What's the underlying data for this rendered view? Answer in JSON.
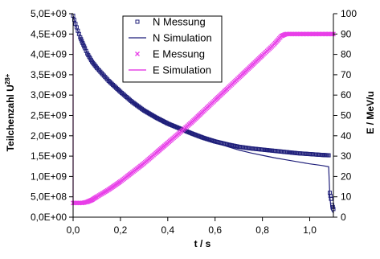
{
  "chart_data": {
    "type": "line",
    "xlabel": "t / s",
    "ylabel_left_base": "Teilchenzahl U",
    "ylabel_left_sup": "28+",
    "ylabel_right": "E / MeV/u",
    "xlim": [
      0,
      1.1
    ],
    "ylim_left": [
      0,
      5000000000.0
    ],
    "ylim_right": [
      0,
      100
    ],
    "grid": false,
    "legend_placement": "top-center",
    "x_ticks": [
      0.0,
      0.2,
      0.4,
      0.6,
      0.8,
      1.0
    ],
    "x_tick_labels": [
      "0,0",
      "0,2",
      "0,4",
      "0,6",
      "0,8",
      "1,0"
    ],
    "y_left_ticks": [
      0,
      500000000.0,
      1000000000.0,
      1500000000.0,
      2000000000.0,
      2500000000.0,
      3000000000.0,
      3500000000.0,
      4000000000.0,
      4500000000.0,
      5000000000.0
    ],
    "y_left_tick_labels": [
      "0,0E+00",
      "5,0E+08",
      "1,0E+09",
      "1,5E+09",
      "2,0E+09",
      "2,5E+09",
      "3,0E+09",
      "3,5E+09",
      "4,0E+09",
      "4,5E+09",
      "5,0E+09"
    ],
    "y_right_ticks": [
      0,
      10,
      20,
      30,
      40,
      50,
      60,
      70,
      80,
      90,
      100
    ],
    "y_right_tick_labels": [
      "0",
      "10",
      "20",
      "30",
      "40",
      "50",
      "60",
      "70",
      "80",
      "90",
      "100"
    ],
    "series": [
      {
        "name": "N Messung",
        "axis": "left",
        "kind": "markers",
        "marker": "square",
        "color": "#1f1f7a",
        "x": [
          0.0,
          0.005,
          0.01,
          0.02,
          0.03,
          0.04,
          0.05,
          0.06,
          0.08,
          0.1,
          0.15,
          0.2,
          0.25,
          0.3,
          0.35,
          0.4,
          0.45,
          0.5,
          0.55,
          0.6,
          0.65,
          0.7,
          0.75,
          0.8,
          0.85,
          0.9,
          0.95,
          1.0,
          1.05,
          1.08,
          1.085,
          1.09,
          1.095,
          1.1
        ],
        "y": [
          4950000000.0,
          4850000000.0,
          4750000000.0,
          4580000000.0,
          4420000000.0,
          4280000000.0,
          4150000000.0,
          4020000000.0,
          3820000000.0,
          3670000000.0,
          3350000000.0,
          3080000000.0,
          2830000000.0,
          2620000000.0,
          2450000000.0,
          2300000000.0,
          2180000000.0,
          2060000000.0,
          1950000000.0,
          1860000000.0,
          1790000000.0,
          1730000000.0,
          1690000000.0,
          1660000000.0,
          1630000000.0,
          1600000000.0,
          1570000000.0,
          1550000000.0,
          1530000000.0,
          1520000000.0,
          600000000.0,
          450000000.0,
          300000000.0,
          200000000.0
        ]
      },
      {
        "name": "N Simulation",
        "axis": "left",
        "kind": "line",
        "color": "#1f1f7a",
        "x": [
          0.0,
          0.005,
          0.01,
          0.02,
          0.03,
          0.04,
          0.05,
          0.06,
          0.08,
          0.1,
          0.15,
          0.2,
          0.25,
          0.3,
          0.35,
          0.4,
          0.45,
          0.5,
          0.55,
          0.6,
          0.65,
          0.7,
          0.75,
          0.8,
          0.85,
          0.9,
          0.95,
          1.0,
          1.05,
          1.08,
          1.085,
          1.09,
          1.1
        ],
        "y": [
          4950000000.0,
          4850000000.0,
          4750000000.0,
          4580000000.0,
          4420000000.0,
          4280000000.0,
          4150000000.0,
          4020000000.0,
          3820000000.0,
          3670000000.0,
          3350000000.0,
          3080000000.0,
          2830000000.0,
          2620000000.0,
          2450000000.0,
          2300000000.0,
          2180000000.0,
          2060000000.0,
          1950000000.0,
          1840000000.0,
          1740000000.0,
          1650000000.0,
          1580000000.0,
          1520000000.0,
          1460000000.0,
          1410000000.0,
          1360000000.0,
          1310000000.0,
          1270000000.0,
          1240000000.0,
          500000000.0,
          200000000.0,
          100000000.0
        ]
      },
      {
        "name": "E Messung",
        "axis": "right",
        "kind": "markers",
        "marker": "x",
        "color": "#e83ee8",
        "x": [
          0.0,
          0.02,
          0.04,
          0.06,
          0.08,
          0.1,
          0.15,
          0.2,
          0.25,
          0.3,
          0.35,
          0.4,
          0.45,
          0.5,
          0.55,
          0.6,
          0.65,
          0.7,
          0.75,
          0.8,
          0.85,
          0.88,
          0.9,
          0.95,
          1.0,
          1.05,
          1.1
        ],
        "y": [
          7,
          7,
          7,
          7.5,
          8.5,
          10,
          13.5,
          17.5,
          22,
          26.5,
          31.5,
          36.5,
          41.5,
          46.5,
          52,
          57.5,
          63,
          68.5,
          74,
          79.5,
          85,
          89,
          90,
          90,
          90,
          90,
          90
        ]
      },
      {
        "name": "E Simulation",
        "axis": "right",
        "kind": "line",
        "color": "#e020e0",
        "x": [
          0.0,
          0.0,
          0.02,
          0.04,
          0.06,
          0.08,
          0.1,
          0.15,
          0.2,
          0.25,
          0.3,
          0.35,
          0.4,
          0.45,
          0.5,
          0.55,
          0.6,
          0.65,
          0.7,
          0.75,
          0.8,
          0.85,
          0.88,
          0.9,
          0.95,
          1.0,
          1.05,
          1.1
        ],
        "y": [
          90,
          7,
          7,
          7,
          7.5,
          8.5,
          10,
          13.5,
          17.5,
          22,
          26.5,
          31.5,
          36.5,
          41.5,
          46.5,
          52,
          57.5,
          63,
          68.5,
          74,
          79.5,
          85,
          89,
          90,
          90,
          90,
          90,
          90
        ]
      }
    ]
  }
}
